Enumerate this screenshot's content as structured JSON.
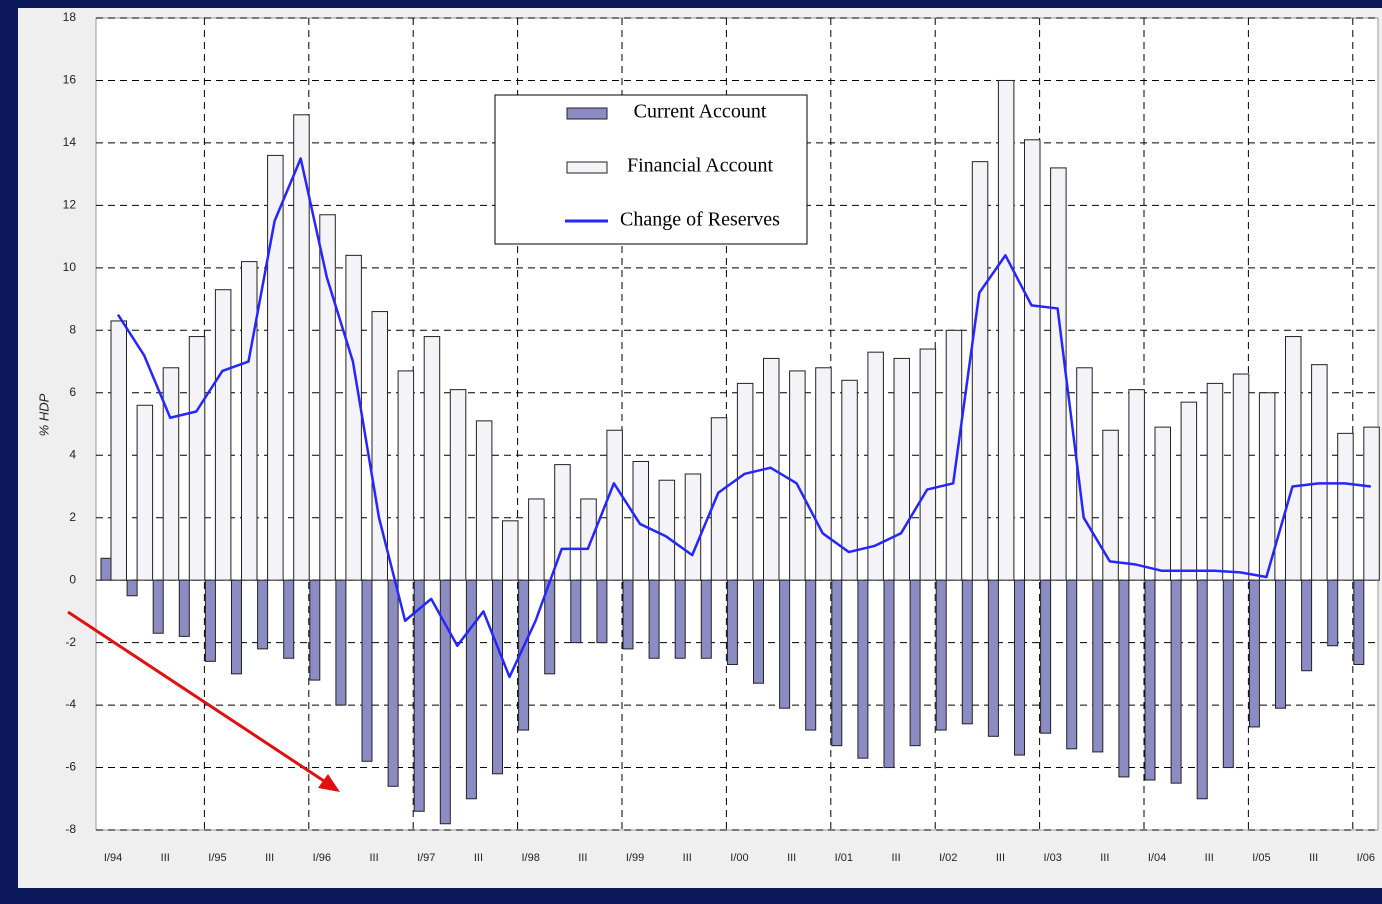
{
  "chart_data": {
    "type": "bar",
    "y_label": "% HDP",
    "categories": [
      "I/94",
      null,
      "III",
      null,
      "I/95",
      null,
      "III",
      null,
      "I/96",
      null,
      "III",
      null,
      "I/97",
      null,
      "III",
      null,
      "I/98",
      null,
      "III",
      null,
      "I/99",
      null,
      "III",
      null,
      "I/00",
      null,
      "III",
      null,
      "I/01",
      null,
      "III",
      null,
      "I/02",
      null,
      "III",
      null,
      "I/03",
      null,
      "III",
      null,
      "I/04",
      null,
      "III",
      null,
      "I/05",
      null,
      "III",
      null,
      "I/06"
    ],
    "series": [
      {
        "name": "Current Account",
        "type": "bar",
        "color": "#8c8cc4",
        "values": [
          0.7,
          -0.5,
          -1.7,
          -1.8,
          -2.6,
          -3.0,
          -2.2,
          -2.5,
          -3.2,
          -4.0,
          -5.8,
          -6.6,
          -7.4,
          -7.8,
          -7.0,
          -6.2,
          -4.8,
          -3.0,
          -2.0,
          -2.0,
          -2.2,
          -2.5,
          -2.5,
          -2.5,
          -2.7,
          -3.3,
          -4.1,
          -4.8,
          -5.3,
          -5.7,
          -6.0,
          -5.3,
          -4.8,
          -4.6,
          -5.0,
          -5.6,
          -4.9,
          -5.4,
          -5.5,
          -6.3,
          -6.4,
          -6.5,
          -7.0,
          -6.0,
          -4.7,
          -4.1,
          -2.9,
          -2.1,
          -2.7
        ]
      },
      {
        "name": "Financial Account",
        "type": "bar",
        "color": "#f3f3f8",
        "values": [
          8.3,
          5.6,
          6.8,
          7.8,
          9.3,
          10.2,
          13.6,
          14.9,
          11.7,
          10.4,
          8.6,
          6.7,
          7.8,
          6.1,
          5.1,
          1.9,
          2.6,
          3.7,
          2.6,
          4.8,
          3.8,
          3.2,
          3.4,
          5.2,
          6.3,
          7.1,
          6.7,
          6.8,
          6.4,
          7.3,
          7.1,
          7.4,
          8.0,
          13.4,
          16.0,
          14.1,
          13.2,
          6.8,
          4.8,
          6.1,
          4.9,
          5.7,
          6.3,
          6.6,
          6.0,
          7.8,
          6.9,
          4.7,
          4.9
        ]
      },
      {
        "name": "Change of Reserves",
        "type": "line",
        "color": "#2626ff",
        "values": [
          8.5,
          7.2,
          5.2,
          5.4,
          6.7,
          7.0,
          11.5,
          13.5,
          9.7,
          7.0,
          2.0,
          -1.3,
          -0.6,
          -2.1,
          -1.0,
          -3.1,
          -1.3,
          1.0,
          1.0,
          3.1,
          1.8,
          1.4,
          0.8,
          2.8,
          3.4,
          3.6,
          3.1,
          1.5,
          0.9,
          1.1,
          1.5,
          2.9,
          3.1,
          9.2,
          10.4,
          8.8,
          8.7,
          2.0,
          0.6,
          0.5,
          0.3,
          0.3,
          0.3,
          0.25,
          0.1,
          3.0,
          3.1,
          3.1,
          3.0
        ]
      }
    ],
    "ylim": [
      -8,
      18
    ],
    "yticks": [
      -8,
      -6,
      -4,
      -2,
      0,
      2,
      4,
      6,
      8,
      10,
      12,
      14,
      16,
      18
    ],
    "grid": true,
    "legend": "top-center"
  }
}
